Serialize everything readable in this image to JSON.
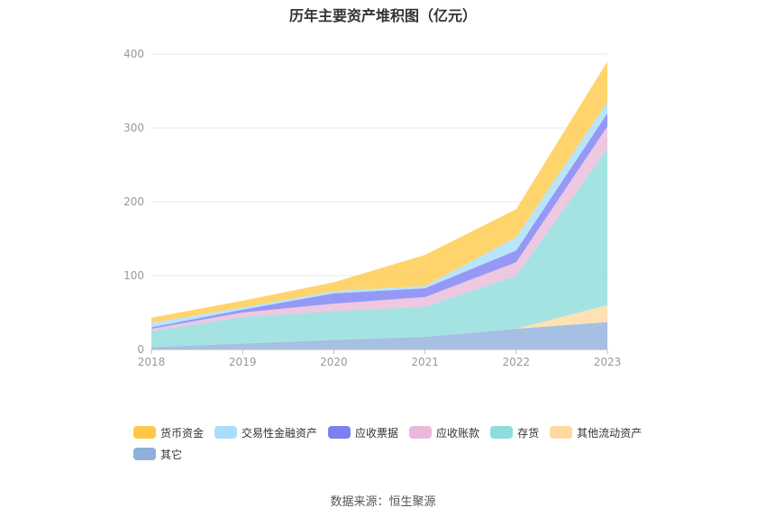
{
  "source_text": "数据来源：恒生聚源",
  "chart_data": {
    "type": "area",
    "stacked": true,
    "title": "历年主要资产堆积图（亿元）",
    "xlabel": "",
    "ylabel": "",
    "x": [
      "2018",
      "2019",
      "2020",
      "2021",
      "2022",
      "2023"
    ],
    "ylim": [
      0,
      400
    ],
    "yticks": [
      0,
      100,
      200,
      300,
      400
    ],
    "grid": true,
    "legend_position": "bottom",
    "series": [
      {
        "name": "其它",
        "color": "#8EB0DB",
        "values": [
          3,
          8,
          13,
          17,
          28,
          37
        ]
      },
      {
        "name": "其他流动资产",
        "color": "#FFD9A0",
        "values": [
          0,
          0,
          0,
          0,
          0,
          23
        ]
      },
      {
        "name": "存货",
        "color": "#8FDCDC",
        "values": [
          22,
          36,
          39,
          41,
          72,
          212
        ]
      },
      {
        "name": "应收账款",
        "color": "#EAB9DA",
        "values": [
          3,
          6,
          10,
          13,
          18,
          30
        ]
      },
      {
        "name": "应收票据",
        "color": "#7B80F2",
        "values": [
          2,
          4,
          14,
          12,
          16,
          18
        ]
      },
      {
        "name": "交易性金融资产",
        "color": "#A8DEFA",
        "values": [
          6,
          3,
          3,
          3,
          18,
          15
        ]
      },
      {
        "name": "货币资金",
        "color": "#FFC947",
        "values": [
          7,
          9,
          12,
          42,
          38,
          55
        ]
      }
    ],
    "legend_order": [
      "货币资金",
      "交易性金融资产",
      "应收票据",
      "应收账款",
      "存货",
      "其他流动资产",
      "其它"
    ]
  }
}
